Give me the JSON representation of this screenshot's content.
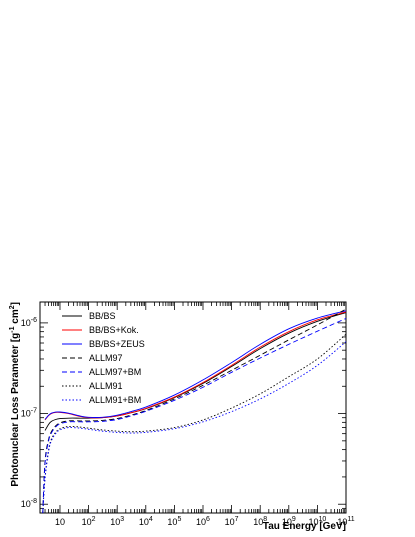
{
  "chart_data": {
    "type": "line",
    "xscale": "log",
    "yscale": "log",
    "xlim": [
      2,
      100000000000
    ],
    "ylim": [
      8e-09,
      1.7e-06
    ],
    "xlabel": "Tau Energy [GeV]",
    "ylabel": "Photonuclear Loss Parameter [g^-1 cm^2]",
    "ylabel_main": "Photonuclear Loss Parameter [g",
    "ylabel_sup1": "-1",
    "ylabel_mid": " cm",
    "ylabel_sup2": "2",
    "ylabel_end": "]",
    "x_ticks": [
      {
        "base": "10",
        "exp": "",
        "value": 10
      },
      {
        "base": "10",
        "exp": "2",
        "value": 100
      },
      {
        "base": "10",
        "exp": "3",
        "value": 1000
      },
      {
        "base": "10",
        "exp": "4",
        "value": 10000
      },
      {
        "base": "10",
        "exp": "5",
        "value": 100000
      },
      {
        "base": "10",
        "exp": "6",
        "value": 1000000
      },
      {
        "base": "10",
        "exp": "7",
        "value": 10000000
      },
      {
        "base": "10",
        "exp": "8",
        "value": 100000000
      },
      {
        "base": "10",
        "exp": "9",
        "value": 1000000000
      },
      {
        "base": "10",
        "exp": "10",
        "value": 10000000000
      },
      {
        "base": "10",
        "exp": "11",
        "value": 100000000000
      }
    ],
    "y_ticks": [
      {
        "base": "10",
        "exp": "-6",
        "value": 1e-06
      },
      {
        "base": "10",
        "exp": "-7",
        "value": 1e-07
      },
      {
        "base": "10",
        "exp": "-8",
        "value": 1e-08
      }
    ],
    "legend_position": "top-left",
    "series": [
      {
        "name": "BB/BS",
        "color": "#000000",
        "dash": "solid",
        "x": [
          3,
          4,
          5,
          7,
          10,
          20,
          50,
          100,
          300,
          1000,
          3000,
          10000,
          100000,
          1000000,
          10000000,
          100000000,
          1000000000,
          10000000000,
          100000000000
        ],
        "y": [
          6.5e-08,
          7.6e-08,
          8.2e-08,
          8.6e-08,
          8.8e-08,
          8.9e-08,
          8.9e-08,
          8.9e-08,
          9e-08,
          9.4e-08,
          1.02e-07,
          1.13e-07,
          1.5e-07,
          2.15e-07,
          3.3e-07,
          5.2e-07,
          7.7e-07,
          1.04e-06,
          1.3e-06
        ]
      },
      {
        "name": "BB/BS+Kok.",
        "color": "#ff0000",
        "dash": "solid",
        "x": [
          3,
          4,
          5,
          7,
          10,
          20,
          50,
          100,
          300,
          1000,
          3000,
          10000,
          100000,
          1000000,
          10000000,
          100000000,
          1000000000,
          10000000000,
          100000000000
        ],
        "y": [
          8.5e-08,
          9.5e-08,
          1e-07,
          1.03e-07,
          1.03e-07,
          1e-07,
          9.3e-08,
          9e-08,
          9e-08,
          9.4e-08,
          1.02e-07,
          1.14e-07,
          1.52e-07,
          2.2e-07,
          3.4e-07,
          5.4e-07,
          8e-07,
          1.08e-06,
          1.32e-06
        ]
      },
      {
        "name": "BB/BS+ZEUS",
        "color": "#0000ff",
        "dash": "solid",
        "x": [
          3,
          4,
          5,
          7,
          10,
          20,
          50,
          100,
          300,
          1000,
          3000,
          10000,
          100000,
          1000000,
          10000000,
          100000000,
          1000000000,
          10000000000,
          100000000000
        ],
        "y": [
          8.6e-08,
          9.6e-08,
          1.01e-07,
          1.04e-07,
          1.04e-07,
          1.01e-07,
          9.4e-08,
          9.1e-08,
          9.1e-08,
          9.6e-08,
          1.05e-07,
          1.18e-07,
          1.6e-07,
          2.35e-07,
          3.65e-07,
          5.8e-07,
          8.6e-07,
          1.13e-06,
          1.36e-06
        ]
      },
      {
        "name": "ALLM97",
        "color": "#000000",
        "dash": "5,3",
        "x": [
          2.5,
          3,
          4,
          5,
          7,
          10,
          20,
          50,
          100,
          300,
          1000,
          3000,
          10000,
          100000,
          1000000,
          10000000,
          100000000,
          1000000000,
          10000000000,
          100000000000
        ],
        "y": [
          8e-09,
          3e-08,
          5.2e-08,
          6.3e-08,
          7.3e-08,
          7.9e-08,
          8.3e-08,
          8.3e-08,
          8.3e-08,
          8.4e-08,
          8.8e-08,
          9.6e-08,
          1.08e-07,
          1.45e-07,
          2.05e-07,
          3e-07,
          4.4e-07,
          6.5e-07,
          9.5e-07,
          1.42e-06
        ]
      },
      {
        "name": "ALLM97+BM",
        "color": "#0000ff",
        "dash": "5,3",
        "x": [
          2.5,
          3,
          4,
          5,
          7,
          10,
          20,
          50,
          100,
          300,
          1000,
          3000,
          10000,
          100000,
          1000000,
          10000000,
          100000000,
          1000000000,
          10000000000,
          100000000000
        ],
        "y": [
          8e-09,
          2.8e-08,
          5e-08,
          6.1e-08,
          7.1e-08,
          7.7e-08,
          8.1e-08,
          8.1e-08,
          8.1e-08,
          8.2e-08,
          8.6e-08,
          9.4e-08,
          1.06e-07,
          1.4e-07,
          1.95e-07,
          2.85e-07,
          4.1e-07,
          5.8e-07,
          8.1e-07,
          1.12e-06
        ]
      },
      {
        "name": "ALLM91",
        "color": "#000000",
        "dash": "1.5,2",
        "x": [
          2.5,
          3,
          4,
          5,
          7,
          10,
          20,
          50,
          100,
          300,
          1000,
          3000,
          10000,
          100000,
          1000000,
          10000000,
          100000000,
          1000000000,
          10000000000,
          100000000000
        ],
        "y": [
          8e-09,
          2e-08,
          4e-08,
          5.2e-08,
          6.2e-08,
          6.8e-08,
          7.2e-08,
          7.1e-08,
          6.9e-08,
          6.6e-08,
          6.4e-08,
          6.3e-08,
          6.4e-08,
          7e-08,
          8.5e-08,
          1.15e-07,
          1.65e-07,
          2.55e-07,
          4e-07,
          7.5e-07
        ]
      },
      {
        "name": "ALLM91+BM",
        "color": "#0000ff",
        "dash": "1.5,2",
        "x": [
          2.5,
          3,
          4,
          5,
          7,
          10,
          20,
          50,
          100,
          300,
          1000,
          3000,
          10000,
          100000,
          1000000,
          10000000,
          100000000,
          1000000000,
          10000000000,
          100000000000
        ],
        "y": [
          8e-09,
          1.9e-08,
          3.8e-08,
          5e-08,
          6e-08,
          6.6e-08,
          7e-08,
          6.9e-08,
          6.7e-08,
          6.4e-08,
          6.2e-08,
          6.1e-08,
          6.2e-08,
          6.8e-08,
          8.1e-08,
          1.05e-07,
          1.45e-07,
          2.15e-07,
          3.4e-07,
          6.2e-07
        ]
      }
    ]
  }
}
